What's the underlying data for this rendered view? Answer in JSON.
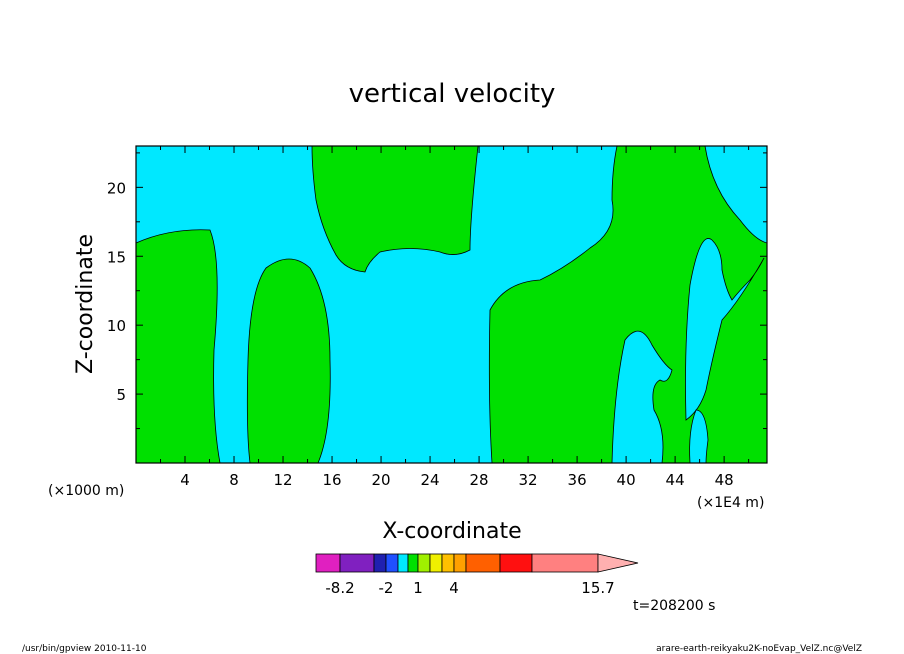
{
  "chart_data": {
    "type": "heatmap",
    "title": "vertical velocity",
    "xlabel": "X-coordinate",
    "ylabel": "Z-coordinate",
    "x_unit_left": "(×1000 m)",
    "x_unit_right": "(×1E4 m)",
    "xlim": [
      0,
      51.5
    ],
    "ylim": [
      0,
      23
    ],
    "x_ticks": [
      "4",
      "8",
      "12",
      "16",
      "20",
      "24",
      "28",
      "32",
      "36",
      "40",
      "44",
      "48"
    ],
    "y_ticks": [
      "5",
      "10",
      "15",
      "20"
    ],
    "x_tick_values": [
      4,
      8,
      12,
      16,
      20,
      24,
      28,
      32,
      36,
      40,
      44,
      48
    ],
    "y_tick_values": [
      5,
      10,
      15,
      20
    ],
    "colorbar": {
      "colors": [
        "#e020c0",
        "#8020c0",
        "#2020b0",
        "#2050ff",
        "#00e8ff",
        "#00e000",
        "#a0f000",
        "#f0f000",
        "#ffc000",
        "#ffa000",
        "#ff6000",
        "#ff1010",
        "#ff8080"
      ],
      "extend_color": "#ffb0b0",
      "labels": [
        "-8.2",
        "-2",
        "1",
        "4",
        "15.7"
      ]
    },
    "fills": {
      "background": "#00e8ff",
      "positive": "#00e000"
    },
    "time_label": "t=208200 s"
  },
  "footer": {
    "left": "/usr/bin/gpview   2010-11-10",
    "right": "arare-earth-reikyaku2K-noEvap_VelZ.nc@VelZ"
  }
}
